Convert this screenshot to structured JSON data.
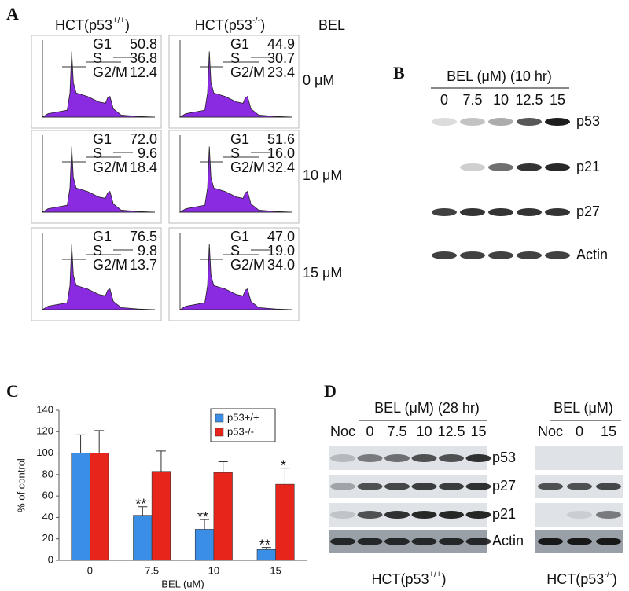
{
  "panel_a": {
    "label": "A",
    "columns": [
      {
        "prefix": "HCT(p53",
        "sup": "+/+",
        "suffix": ")"
      },
      {
        "prefix": "HCT(p53",
        "sup": "-/-",
        "suffix": ")"
      }
    ],
    "treatment": "BEL",
    "rows": [
      {
        "dose": "0 μM",
        "cells": [
          [
            {
              "phase": "G1",
              "value": "50.8"
            },
            {
              "phase": "S",
              "value": "36.8"
            },
            {
              "phase": "G2/M",
              "value": "12.4"
            }
          ],
          [
            {
              "phase": "G1",
              "value": "44.9"
            },
            {
              "phase": "S",
              "value": "30.7"
            },
            {
              "phase": "G2/M",
              "value": "23.4"
            }
          ]
        ]
      },
      {
        "dose": "10 μM",
        "cells": [
          [
            {
              "phase": "G1",
              "value": "72.0"
            },
            {
              "phase": "S",
              "value": "9.6"
            },
            {
              "phase": "G2/M",
              "value": "18.4"
            }
          ],
          [
            {
              "phase": "G1",
              "value": "51.6"
            },
            {
              "phase": "S",
              "value": "16.0"
            },
            {
              "phase": "G2/M",
              "value": "32.4"
            }
          ]
        ]
      },
      {
        "dose": "15 μM",
        "cells": [
          [
            {
              "phase": "G1",
              "value": "76.5"
            },
            {
              "phase": "S",
              "value": "9.8"
            },
            {
              "phase": "G2/M",
              "value": "13.7"
            }
          ],
          [
            {
              "phase": "G1",
              "value": "47.0"
            },
            {
              "phase": "S",
              "value": "19.0"
            },
            {
              "phase": "G2/M",
              "value": "34.0"
            }
          ]
        ]
      }
    ]
  },
  "panel_b": {
    "label": "B",
    "title": "BEL (μM) (10 hr)",
    "lanes": [
      "0",
      "7.5",
      "10",
      "12.5",
      "15"
    ],
    "proteins": [
      "p53",
      "p21",
      "p27",
      "Actin"
    ]
  },
  "chart_data": {
    "type": "bar",
    "label": "C",
    "ylabel": "% of control",
    "xlabel": "BEL (uM)",
    "categories": [
      "0",
      "7.5",
      "10",
      "15"
    ],
    "ylim": [
      0,
      140
    ],
    "yticks": [
      0,
      20,
      40,
      60,
      80,
      100,
      120,
      140
    ],
    "legend": "top-right",
    "series": [
      {
        "name": "p53+/+",
        "color": "#3a8ee6",
        "values": [
          100,
          42,
          29,
          10
        ],
        "errors": [
          17,
          8,
          9,
          2
        ],
        "value_annotations": [
          null,
          "**",
          "**",
          "**"
        ]
      },
      {
        "name": "p53-/-",
        "color": "#e8251b",
        "values": [
          100,
          83,
          82,
          71
        ],
        "errors": [
          21,
          19,
          10,
          15
        ],
        "value_annotations": [
          null,
          null,
          null,
          "*"
        ]
      }
    ]
  },
  "panel_d": {
    "label": "D",
    "left": {
      "title": "BEL (μM) (28 hr)",
      "lanes": [
        "Noc",
        "0",
        "7.5",
        "10",
        "12.5",
        "15"
      ],
      "proteins": [
        "p53",
        "p27",
        "p21",
        "Actin"
      ],
      "caption": {
        "prefix": "HCT(p53",
        "sup": "+/+",
        "suffix": ")"
      }
    },
    "right": {
      "title": "BEL (μM)",
      "lanes": [
        "Noc",
        "0",
        "15"
      ],
      "caption": {
        "prefix": "HCT(p53",
        "sup": "-/-",
        "suffix": ")"
      }
    }
  }
}
